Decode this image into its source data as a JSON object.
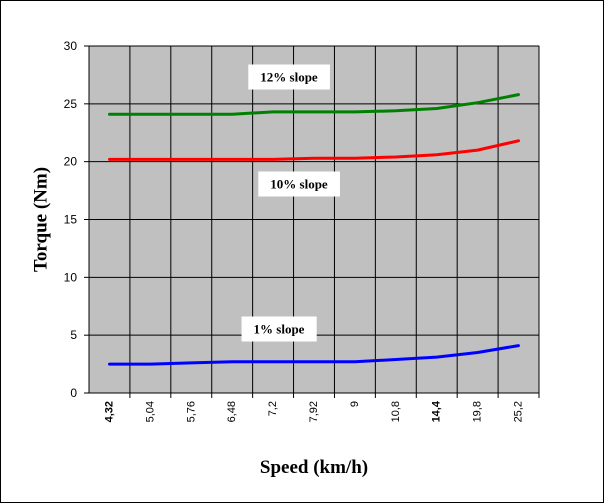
{
  "chart_data": {
    "type": "line",
    "xlabel": "Speed (km/h)",
    "ylabel": "Torque (Nm)",
    "ylim": [
      0,
      30
    ],
    "yticks": [
      0,
      5,
      10,
      15,
      20,
      25,
      30
    ],
    "categories": [
      "4,32",
      "5,04",
      "5,76",
      "6,48",
      "7,2",
      "7,92",
      "9",
      "10,8",
      "14,4",
      "19,8",
      "25,2"
    ],
    "bold_categories": [
      "4,32",
      "14,4"
    ],
    "grid": true,
    "plot_background": "#c0c0c0",
    "series": [
      {
        "name": "12% slope",
        "color": "#008000",
        "values": [
          24.1,
          24.1,
          24.1,
          24.1,
          24.3,
          24.3,
          24.3,
          24.4,
          24.6,
          25.1,
          25.8
        ]
      },
      {
        "name": "10% slope",
        "color": "#ff0000",
        "values": [
          20.2,
          20.2,
          20.2,
          20.2,
          20.2,
          20.3,
          20.3,
          20.4,
          20.6,
          21.0,
          21.8
        ]
      },
      {
        "name": "1% slope",
        "color": "#0000ff",
        "values": [
          2.5,
          2.5,
          2.6,
          2.7,
          2.7,
          2.7,
          2.7,
          2.9,
          3.1,
          3.5,
          4.1
        ]
      }
    ]
  }
}
